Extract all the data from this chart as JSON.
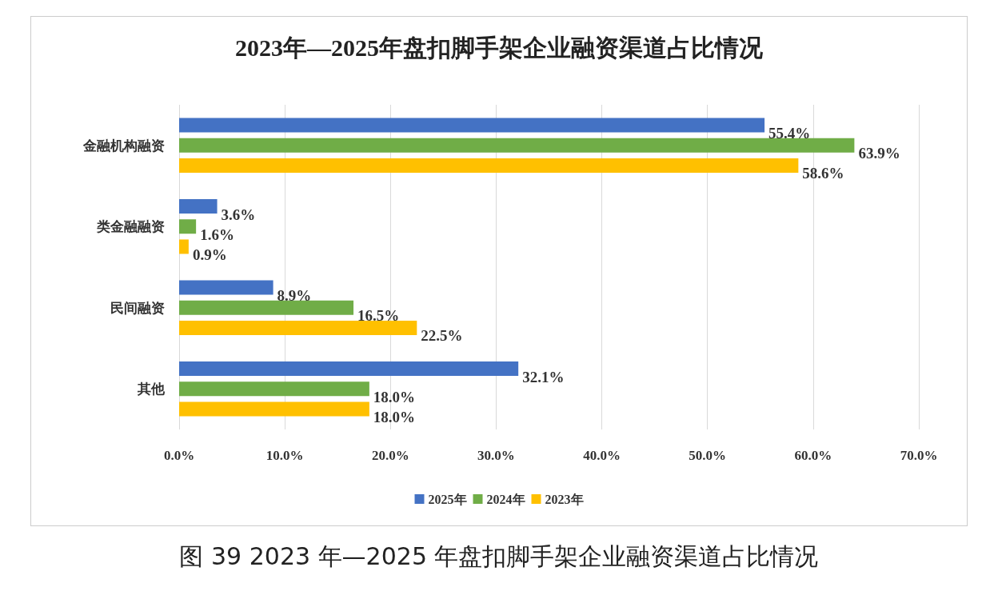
{
  "chart_data": {
    "type": "bar",
    "orientation": "horizontal",
    "title": "2023年—2025年盘扣脚手架企业融资渠道占比情况",
    "categories": [
      "金融机构融资",
      "类金融融资",
      "民间融资",
      "其他"
    ],
    "series": [
      {
        "name": "2025年",
        "color": "#4472c4",
        "values": [
          55.4,
          3.6,
          8.9,
          32.1
        ],
        "value_labels": [
          "55.4%",
          "3.6%",
          "8.9%",
          "32.1%"
        ]
      },
      {
        "name": "2024年",
        "color": "#70ad47",
        "values": [
          63.9,
          1.6,
          16.5,
          18.0
        ],
        "value_labels": [
          "63.9%",
          "1.6%",
          "16.5%",
          "18.0%"
        ]
      },
      {
        "name": "2023年",
        "color": "#ffc000",
        "values": [
          58.6,
          0.9,
          22.5,
          18.0
        ],
        "value_labels": [
          "58.6%",
          "0.9%",
          "22.5%",
          "18.0%"
        ]
      }
    ],
    "xlim": [
      0,
      70
    ],
    "xticks": [
      {
        "value": 0,
        "label": "0.0%"
      },
      {
        "value": 10,
        "label": "10.0%"
      },
      {
        "value": 20,
        "label": "20.0%"
      },
      {
        "value": 30,
        "label": "30.0%"
      },
      {
        "value": 40,
        "label": "40.0%"
      },
      {
        "value": 50,
        "label": "50.0%"
      },
      {
        "value": 60,
        "label": "60.0%"
      },
      {
        "value": 70,
        "label": "70.0%"
      }
    ],
    "grid": "x",
    "legend": "bottom",
    "annotations": [
      "图 39 2023 年—2025 年盘扣脚手架企业融资渠道占比情况"
    ]
  }
}
